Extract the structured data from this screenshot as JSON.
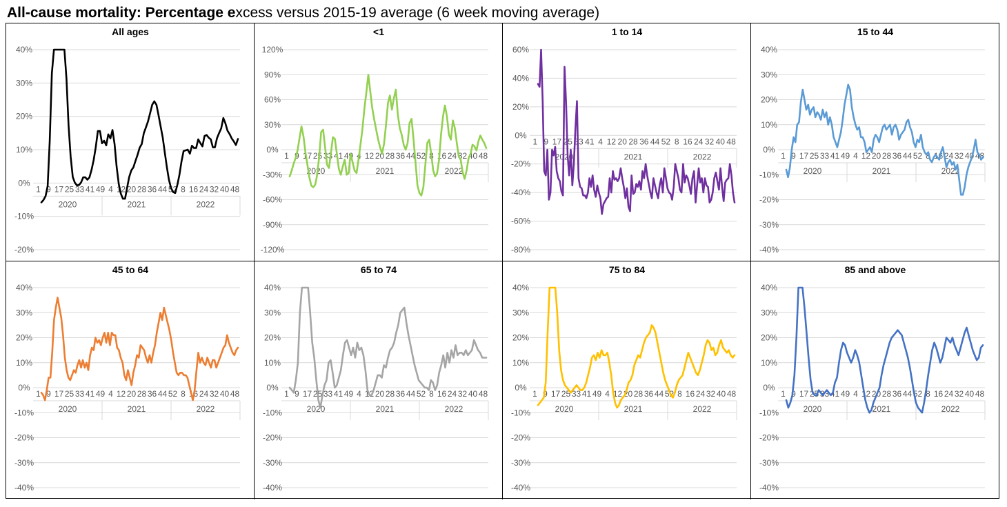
{
  "title": {
    "part1": "All-cause mortality: ",
    "part2": "Percentage e",
    "part3": "xcess versus 2015-19 average (6 week moving average)"
  },
  "chart_data": [
    {
      "type": "line",
      "title": "All ages",
      "color": "#000000",
      "ylim": [
        -20,
        40
      ],
      "yticks": [
        40,
        30,
        20,
        10,
        0,
        -10,
        -20
      ],
      "xtick_labels": [
        "1",
        "9",
        "17",
        "25",
        "33",
        "41",
        "49",
        "4",
        "12",
        "20",
        "28",
        "36",
        "44",
        "52",
        "8",
        "16",
        "24",
        "32",
        "40",
        "48"
      ],
      "year_labels": [
        "2020",
        "2021",
        "2022"
      ],
      "values": [
        -5.8,
        -5.1,
        -3.9,
        -0.9,
        12.6,
        32.9,
        42.3,
        42.3,
        42.3,
        42.3,
        42.3,
        42.3,
        31.2,
        17.3,
        8.0,
        1.8,
        0.1,
        -0.7,
        -0.6,
        0.2,
        1.7,
        1.7,
        1.0,
        1.7,
        4.0,
        6.9,
        10.7,
        15.6,
        15.6,
        11.9,
        12.7,
        11.3,
        14.6,
        13.4,
        15.9,
        11.7,
        4.9,
        -0.3,
        -3.2,
        -4.7,
        -4.7,
        -1.4,
        1.8,
        3.8,
        4.7,
        6.6,
        8.5,
        10.6,
        11.7,
        15.0,
        16.7,
        18.5,
        21.0,
        23.5,
        24.5,
        23.5,
        20.4,
        17.1,
        13.7,
        9.2,
        4.8,
        1.0,
        -1.5,
        -2.7,
        -3.0,
        -0.6,
        2.4,
        6.4,
        9.6,
        9.8,
        10.0,
        8.8,
        11.2,
        10.5,
        10.5,
        13.1,
        12.0,
        11.0,
        14.1,
        14.4,
        13.6,
        13.1,
        10.7,
        10.7,
        13.5,
        15.0,
        16.4,
        19.5,
        17.9,
        15.7,
        14.7,
        13.4,
        12.5,
        11.4,
        13.2
      ]
    },
    {
      "type": "line",
      "title": "<1",
      "color": "#92D050",
      "ylim": [
        -120,
        120
      ],
      "yticks": [
        120,
        90,
        60,
        30,
        0,
        -30,
        -60,
        -90,
        -120
      ],
      "xtick_labels": [
        "1",
        "9",
        "17",
        "25",
        "33",
        "41",
        "49",
        "4",
        "12",
        "20",
        "28",
        "36",
        "44",
        "52",
        "8",
        "16",
        "24",
        "32",
        "40",
        "48"
      ],
      "year_labels": [
        "2020",
        "2021",
        "2022"
      ],
      "values": [
        -32,
        -25,
        -17,
        -10,
        -1,
        14,
        28,
        16,
        -3,
        -18,
        -33,
        -43,
        -45,
        -42,
        -30,
        -8,
        21,
        24,
        3,
        -18,
        -22,
        -4,
        15,
        13,
        -5,
        -23,
        -30,
        -20,
        -12,
        -30,
        -28,
        -5,
        -15,
        -25,
        -28,
        -12,
        6,
        24,
        49,
        69,
        90,
        70,
        50,
        36,
        24,
        12,
        3,
        -5,
        7,
        30,
        56,
        65,
        48,
        62,
        72,
        42,
        26,
        18,
        6,
        0,
        8,
        32,
        37,
        12,
        -15,
        -43,
        -52,
        -55,
        -45,
        -18,
        8,
        12,
        -5,
        -25,
        -32,
        -28,
        -12,
        18,
        40,
        53,
        40,
        18,
        12,
        35,
        26,
        8,
        -8,
        -12,
        -27,
        -35,
        -25,
        -10,
        -5,
        6,
        4,
        -1,
        10,
        17,
        12,
        8,
        2
      ]
    },
    {
      "type": "line",
      "title": "1 to 14",
      "color": "#7030A0",
      "ylim": [
        -80,
        60
      ],
      "yticks": [
        60,
        40,
        20,
        0,
        -20,
        -40,
        -60,
        -80
      ],
      "xtick_labels": [
        "1",
        "9",
        "17",
        "25",
        "33",
        "41",
        "4",
        "12",
        "20",
        "28",
        "36",
        "44",
        "52",
        "8",
        "16",
        "24",
        "32",
        "40",
        "48"
      ],
      "year_labels": [
        "2020",
        "2021",
        "2022"
      ],
      "values": [
        36,
        34,
        60,
        24,
        -25,
        -28,
        -10,
        -45,
        -40,
        -10,
        -14,
        -8,
        -25,
        -30,
        -32,
        -39,
        -42,
        48,
        23,
        -14,
        -28,
        -10,
        -35,
        -20,
        5,
        24,
        -30,
        -36,
        -37,
        -42,
        -42,
        -44,
        -40,
        -30,
        -36,
        -28,
        -38,
        -43,
        -35,
        -40,
        -44,
        -55,
        -48,
        -46,
        -44,
        -43,
        -30,
        -40,
        -25,
        -31,
        -30,
        -32,
        -30,
        -23,
        -30,
        -36,
        -44,
        -37,
        -50,
        -53,
        -28,
        -41,
        -40,
        -34,
        -36,
        -32,
        -38,
        -25,
        -30,
        -20,
        -28,
        -34,
        -40,
        -44,
        -30,
        -35,
        -40,
        -44,
        -35,
        -30,
        -40,
        -23,
        -30,
        -37,
        -40,
        -41,
        -45,
        -36,
        -20,
        -25,
        -30,
        -38,
        -40,
        -20,
        -33,
        -28,
        -30,
        -35,
        -41,
        -30,
        -25,
        -47,
        -35,
        -23,
        -33,
        -30,
        -40,
        -30,
        -35,
        -36,
        -47,
        -45,
        -40,
        -30,
        -26,
        -32,
        -38,
        -23,
        -36,
        -46,
        -33,
        -31,
        -30,
        -20,
        -28,
        -40,
        -47
      ]
    },
    {
      "type": "line",
      "title": "15 to 44",
      "color": "#5B9BD5",
      "ylim": [
        -40,
        40
      ],
      "yticks": [
        40,
        30,
        20,
        10,
        0,
        -10,
        -20,
        -30,
        -40
      ],
      "xtick_labels": [
        "1",
        "9",
        "17",
        "25",
        "33",
        "41",
        "49",
        "4",
        "12",
        "20",
        "28",
        "36",
        "44",
        "52",
        "8",
        "16",
        "24",
        "32",
        "40",
        "48"
      ],
      "year_labels": [
        "2020",
        "2021",
        "2022"
      ],
      "values": [
        -8,
        -11,
        -7,
        0,
        5,
        3,
        10,
        11,
        19,
        24,
        20,
        16,
        18,
        14,
        16,
        17,
        13,
        15,
        14,
        12,
        16,
        13,
        15,
        10,
        13,
        10,
        5,
        3,
        1,
        4,
        7,
        12,
        18,
        22,
        26,
        24,
        17,
        13,
        10,
        8,
        9,
        5,
        5,
        3,
        -1,
        0,
        1,
        -1,
        4,
        6,
        5,
        3,
        6,
        9,
        10,
        8,
        9,
        10,
        6,
        9,
        10,
        8,
        4,
        6,
        7,
        8,
        11,
        12,
        9,
        7,
        3,
        1,
        4,
        3,
        6,
        1,
        -1,
        -2,
        -1,
        -4,
        -5,
        -3,
        -2,
        -3,
        -4,
        -1,
        1,
        -3,
        -7,
        -5,
        -4,
        -6,
        -5,
        -8,
        -6,
        -12,
        -18,
        -18,
        -15,
        -10,
        -7,
        -5,
        -3,
        0,
        4,
        -1,
        -2,
        -4,
        -3
      ]
    },
    {
      "type": "line",
      "title": "45 to 64",
      "color": "#ED7D31",
      "ylim": [
        -40,
        40
      ],
      "yticks": [
        40,
        30,
        20,
        10,
        0,
        -10,
        -20,
        -30,
        -40
      ],
      "xtick_labels": [
        "1",
        "9",
        "17",
        "25",
        "33",
        "41",
        "49",
        "4",
        "12",
        "20",
        "28",
        "36",
        "44",
        "52",
        "8",
        "16",
        "24",
        "32",
        "40",
        "48"
      ],
      "year_labels": [
        "2020",
        "2021",
        "2022"
      ],
      "values": [
        -2,
        -3,
        -5,
        -1,
        4,
        4,
        14,
        27,
        32,
        36,
        32,
        28,
        21,
        12,
        7,
        4,
        3,
        5,
        7,
        6,
        9,
        11,
        8,
        11,
        8,
        10,
        7,
        13,
        16,
        15,
        20,
        18,
        19,
        17,
        20,
        22,
        18,
        22,
        17,
        22,
        21,
        21,
        16,
        15,
        12,
        10,
        5,
        3,
        7,
        4,
        1,
        6,
        9,
        13,
        12,
        17,
        16,
        15,
        12,
        10,
        13,
        10,
        14,
        17,
        22,
        26,
        30,
        27,
        32,
        29,
        26,
        23,
        19,
        14,
        10,
        6,
        5,
        6,
        6,
        5,
        5,
        4,
        1,
        -2,
        -5,
        -1,
        7,
        14,
        10,
        12,
        10,
        9,
        12,
        10,
        8,
        11,
        11,
        8,
        10,
        12,
        14,
        16,
        17,
        21,
        18,
        16,
        14,
        13,
        15,
        16
      ]
    },
    {
      "type": "line",
      "title": "65 to 74",
      "color": "#A5A5A5",
      "ylim": [
        -40,
        40
      ],
      "yticks": [
        40,
        30,
        20,
        10,
        0,
        -10,
        -20,
        -30,
        -40
      ],
      "xtick_labels": [
        "1",
        "9",
        "17",
        "25",
        "33",
        "41",
        "49",
        "4",
        "12",
        "20",
        "28",
        "36",
        "44",
        "52",
        "8",
        "16",
        "24",
        "32",
        "40",
        "48"
      ],
      "year_labels": [
        "2020",
        "2021",
        "2022"
      ],
      "values": [
        0,
        -1,
        -2,
        3,
        10,
        30,
        42,
        42,
        42,
        42,
        30,
        18,
        12,
        3,
        -5,
        -8,
        -3,
        1,
        3,
        10,
        11,
        6,
        0,
        1,
        4,
        7,
        13,
        18,
        19,
        16,
        13,
        16,
        12,
        18,
        15,
        16,
        13,
        7,
        -1,
        -3,
        -3,
        -1,
        2,
        5,
        5,
        4,
        9,
        8,
        12,
        15,
        16,
        18,
        22,
        25,
        30,
        31,
        32,
        26,
        21,
        17,
        13,
        9,
        6,
        3,
        2,
        1,
        0,
        0,
        -1,
        3,
        2,
        -1,
        1,
        6,
        9,
        13,
        8,
        14,
        10,
        15,
        12,
        17,
        13,
        14,
        14,
        13,
        15,
        13,
        14,
        15,
        19,
        17,
        15,
        14,
        12,
        12,
        12
      ]
    },
    {
      "type": "line",
      "title": "75 to 84",
      "color": "#FFC000",
      "ylim": [
        -40,
        40
      ],
      "yticks": [
        40,
        30,
        20,
        10,
        0,
        -10,
        -20,
        -30,
        -40
      ],
      "xtick_labels": [
        "1",
        "9",
        "17",
        "25",
        "33",
        "41",
        "49",
        "4",
        "12",
        "20",
        "28",
        "36",
        "44",
        "52",
        "8",
        "16",
        "24",
        "32",
        "40",
        "48"
      ],
      "year_labels": [
        "2020",
        "2021",
        "2022"
      ],
      "values": [
        -7,
        -6,
        -5,
        -4,
        2,
        22,
        42,
        42,
        42,
        42,
        30,
        15,
        7,
        3,
        1,
        0,
        -1,
        -2,
        -1,
        0,
        1,
        0,
        -1,
        -1,
        0,
        2,
        5,
        8,
        12,
        13,
        11,
        14,
        12,
        15,
        13,
        13,
        14,
        10,
        5,
        -2,
        -6,
        -8,
        -7,
        -5,
        -4,
        -3,
        -1,
        2,
        3,
        5,
        9,
        11,
        13,
        12,
        15,
        18,
        20,
        21,
        22,
        25,
        24,
        22,
        18,
        14,
        10,
        6,
        3,
        1,
        -1,
        -3,
        -4,
        -2,
        1,
        3,
        4,
        5,
        8,
        11,
        14,
        12,
        10,
        8,
        6,
        5,
        7,
        10,
        13,
        17,
        19,
        18,
        15,
        16,
        13,
        14,
        17,
        19,
        16,
        15,
        14,
        15,
        13,
        12,
        13
      ]
    },
    {
      "type": "line",
      "title": "85 and above",
      "color": "#4472C4",
      "ylim": [
        -40,
        40
      ],
      "yticks": [
        40,
        30,
        20,
        10,
        0,
        -10,
        -20,
        -30,
        -40
      ],
      "xtick_labels": [
        "1",
        "9",
        "17",
        "25",
        "33",
        "41",
        "49",
        "4",
        "12",
        "20",
        "28",
        "36",
        "44",
        "52",
        "8",
        "16",
        "24",
        "32",
        "40",
        "48"
      ],
      "year_labels": [
        "2020",
        "2021",
        "2022"
      ],
      "values": [
        -5,
        -8,
        -6,
        -3,
        5,
        20,
        42,
        42,
        42,
        32,
        22,
        12,
        3,
        -2,
        -3,
        -3,
        -1,
        -2,
        -3,
        -2,
        -1,
        -2,
        -3,
        -2,
        2,
        4,
        10,
        15,
        18,
        17,
        14,
        12,
        10,
        12,
        15,
        13,
        10,
        5,
        0,
        -5,
        -8,
        -10,
        -9,
        -6,
        -4,
        -2,
        0,
        5,
        9,
        12,
        15,
        18,
        20,
        21,
        22,
        23,
        22,
        21,
        18,
        15,
        12,
        8,
        3,
        -2,
        -6,
        -8,
        -9,
        -10,
        -6,
        -1,
        5,
        10,
        15,
        18,
        16,
        13,
        10,
        12,
        16,
        20,
        19,
        18,
        20,
        17,
        15,
        13,
        16,
        19,
        22,
        24,
        21,
        18,
        15,
        13,
        11,
        12,
        16,
        17
      ]
    }
  ]
}
